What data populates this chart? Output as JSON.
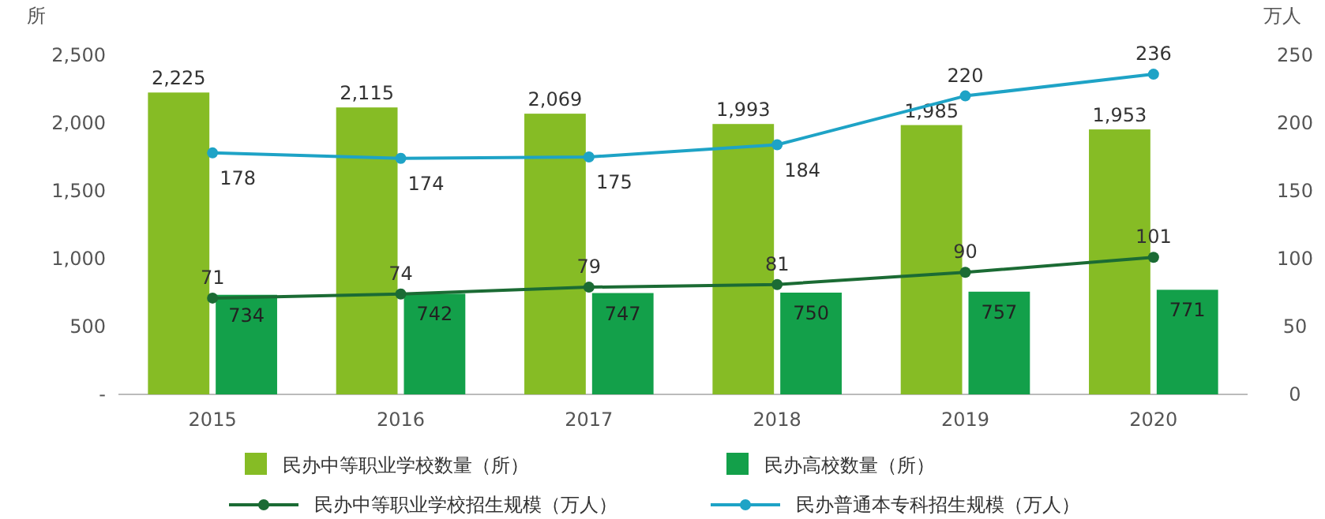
{
  "chart_data": {
    "type": "bar",
    "categories": [
      "2015",
      "2016",
      "2017",
      "2018",
      "2019",
      "2020"
    ],
    "ylabel": "所",
    "y2label": "万人",
    "ylim": [
      0,
      2500
    ],
    "yticks": [
      {
        "value": 0,
        "label": "-"
      },
      500,
      {
        "value": 1000,
        "label": "1,000"
      },
      {
        "value": 1500,
        "label": "1,500"
      },
      {
        "value": 2000,
        "label": "2,000"
      },
      {
        "value": 2500,
        "label": "2,500"
      }
    ],
    "y2lim": [
      0,
      250
    ],
    "y2ticks": [
      0,
      50,
      100,
      150,
      200,
      250
    ],
    "series": [
      {
        "name": "民办中等职业学校数量（所）",
        "color": "#86bc25",
        "values": [
          2225,
          2115,
          2069,
          1993,
          1985,
          1953
        ],
        "value_labels": [
          "2,225",
          "2,115",
          "2,069",
          "1,993",
          "1,985",
          "1,953"
        ]
      },
      {
        "name": "民办高校数量（所）",
        "color": "#13a04a",
        "values": [
          734,
          742,
          747,
          750,
          757,
          771
        ]
      },
      {
        "name": "民办中等职业学校招生规模（万人）",
        "type": "line",
        "axis": "y2",
        "color": "#1b6b34",
        "values": [
          71,
          74,
          79,
          81,
          90,
          101
        ]
      },
      {
        "name": "民办普通本专科招生规模（万人）",
        "type": "line",
        "axis": "y2",
        "color": "#1ea3c6",
        "values": [
          178,
          174,
          175,
          184,
          220,
          236
        ]
      }
    ],
    "data_labels": true,
    "marker": "circle",
    "legend": "bottom",
    "grid": false
  }
}
